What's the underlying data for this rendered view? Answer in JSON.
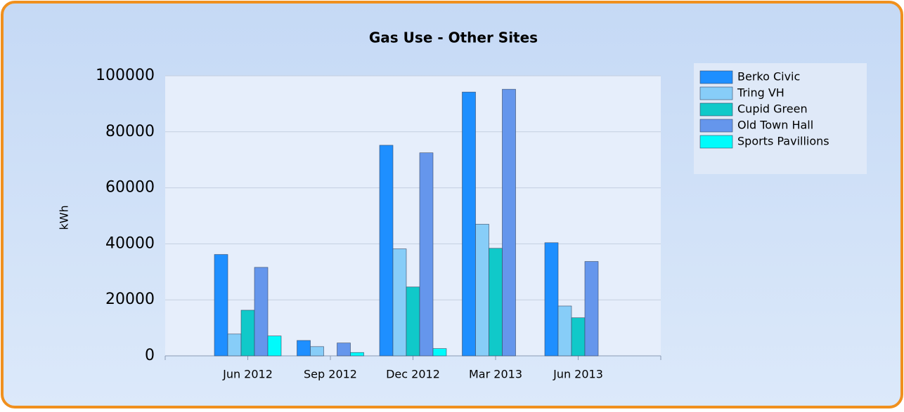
{
  "chart_data": {
    "type": "bar",
    "title": "Gas Use - Other Sites",
    "y_label": "kWh",
    "categories": [
      "Jun 2012",
      "Sep 2012",
      "Dec 2012",
      "Mar 2013",
      "Jun 2013"
    ],
    "series": [
      {
        "name": "Berko Civic",
        "color": "#1e8fff",
        "values": [
          36200,
          5500,
          75200,
          94200,
          40400
        ]
      },
      {
        "name": "Tring VH",
        "color": "#87cdf8",
        "values": [
          7800,
          3300,
          38200,
          47000,
          17800
        ]
      },
      {
        "name": "Cupid Green",
        "color": "#10c9c9",
        "values": [
          16300,
          0,
          24600,
          38400,
          13600
        ]
      },
      {
        "name": "Old Town Hall",
        "color": "#6596ec",
        "values": [
          31600,
          4600,
          72500,
          95200,
          33700
        ]
      },
      {
        "name": "Sports Pavillions",
        "color": "#00fbfb",
        "values": [
          7100,
          1200,
          2600,
          0,
          0
        ]
      }
    ],
    "ylim": [
      0,
      100000
    ],
    "yticks": [
      0,
      20000,
      40000,
      60000,
      80000,
      100000
    ],
    "grid": true,
    "legend": "right"
  }
}
